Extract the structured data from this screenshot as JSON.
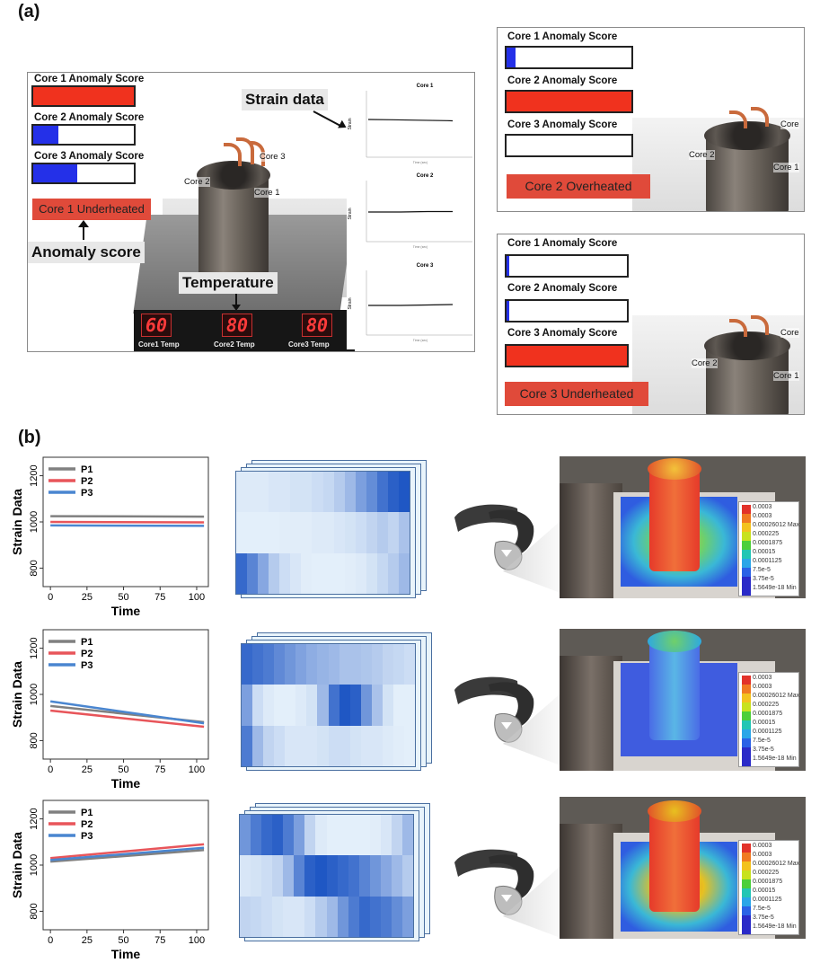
{
  "panel_a_label": "(a)",
  "panel_b_label": "(b)",
  "dashboard_main": {
    "scores": [
      {
        "title": "Core 1 Anomaly Score",
        "fill": 1.0,
        "color": "#f0321e"
      },
      {
        "title": "Core 2 Anomaly Score",
        "fill": 0.25,
        "color": "#2430e8"
      },
      {
        "title": "Core 3 Anomaly Score",
        "fill": 0.44,
        "color": "#2430e8"
      }
    ],
    "status": "Core  1  Underheated",
    "anomaly_callout": "Anomaly score",
    "strain_callout": "Strain data",
    "temperature_callout": "Temperature",
    "core_labels": [
      "Core 3",
      "Core 2",
      "Core 1"
    ],
    "temps": [
      {
        "value": "60",
        "label": "Core1 Temp"
      },
      {
        "value": "80",
        "label": "Core2 Temp"
      },
      {
        "value": "80",
        "label": "Core3 Temp"
      }
    ],
    "mini_charts": [
      {
        "title": "Core 1",
        "ylabel": "Strain",
        "xlabel": "Time (sec)"
      },
      {
        "title": "Core 2",
        "ylabel": "Strain",
        "xlabel": "Time (sec)"
      },
      {
        "title": "Core 3",
        "ylabel": "Strain",
        "xlabel": "Time (sec)"
      }
    ]
  },
  "dashboard_top_right": {
    "scores": [
      {
        "title": "Core 1 Anomaly Score",
        "fill": 0.07,
        "color": "#2430e8"
      },
      {
        "title": "Core 2 Anomaly Score",
        "fill": 1.0,
        "color": "#f0321e"
      },
      {
        "title": "Core 3 Anomaly Score",
        "fill": 0.0,
        "color": "#2430e8"
      }
    ],
    "status": "Core  2  Overheated",
    "core_labels": [
      "Core",
      "Core 2",
      "Core 1"
    ]
  },
  "dashboard_bottom_right": {
    "scores": [
      {
        "title": "Core 1 Anomaly Score",
        "fill": 0.02,
        "color": "#2430e8"
      },
      {
        "title": "Core 2 Anomaly Score",
        "fill": 0.02,
        "color": "#2430e8"
      },
      {
        "title": "Core 3 Anomaly Score",
        "fill": 1.0,
        "color": "#f0321e"
      }
    ],
    "status": "Core  3  Underheated",
    "core_labels": [
      "Core",
      "Core 2",
      "Core 1"
    ]
  },
  "chart_data": [
    {
      "type": "line",
      "ylabel": "Strain Data",
      "xlabel": "Time",
      "xticks": [
        0,
        25,
        50,
        75,
        100
      ],
      "yticks": [
        800,
        1000,
        1200
      ],
      "xlim": [
        -5,
        108
      ],
      "ylim": [
        720,
        1280
      ],
      "series": [
        {
          "name": "P1",
          "color": "#808080",
          "x": [
            0,
            105
          ],
          "y": [
            1025,
            1023
          ]
        },
        {
          "name": "P2",
          "color": "#e8555a",
          "x": [
            0,
            105
          ],
          "y": [
            1000,
            998
          ]
        },
        {
          "name": "P3",
          "color": "#4a86d0",
          "x": [
            0,
            105
          ],
          "y": [
            985,
            983
          ]
        }
      ]
    },
    {
      "type": "line",
      "ylabel": "Strain Data",
      "xlabel": "Time",
      "xticks": [
        0,
        25,
        50,
        75,
        100
      ],
      "yticks": [
        800,
        1000,
        1200
      ],
      "xlim": [
        -5,
        108
      ],
      "ylim": [
        720,
        1280
      ],
      "series": [
        {
          "name": "P1",
          "color": "#808080",
          "x": [
            0,
            105
          ],
          "y": [
            950,
            880
          ]
        },
        {
          "name": "P2",
          "color": "#e8555a",
          "x": [
            0,
            105
          ],
          "y": [
            930,
            860
          ]
        },
        {
          "name": "P3",
          "color": "#4a86d0",
          "x": [
            0,
            105
          ],
          "y": [
            970,
            875
          ]
        }
      ]
    },
    {
      "type": "line",
      "ylabel": "Strain Data",
      "xlabel": "Time",
      "xticks": [
        0,
        25,
        50,
        75,
        100
      ],
      "yticks": [
        800,
        1000,
        1200
      ],
      "xlim": [
        -5,
        108
      ],
      "ylim": [
        720,
        1280
      ],
      "series": [
        {
          "name": "P1",
          "color": "#808080",
          "x": [
            0,
            105
          ],
          "y": [
            1015,
            1065
          ]
        },
        {
          "name": "P2",
          "color": "#e8555a",
          "x": [
            0,
            105
          ],
          "y": [
            1030,
            1090
          ]
        },
        {
          "name": "P3",
          "color": "#4a86d0",
          "x": [
            0,
            105
          ],
          "y": [
            1022,
            1075
          ]
        }
      ]
    },
    {
      "type": "heatmap",
      "colormap": "blues",
      "rows": 3,
      "values": [
        [
          0.08,
          0.08,
          0.08,
          0.1,
          0.1,
          0.12,
          0.12,
          0.15,
          0.18,
          0.25,
          0.35,
          0.5,
          0.6,
          0.75,
          0.85,
          0.9
        ],
        [
          0.05,
          0.05,
          0.05,
          0.05,
          0.06,
          0.06,
          0.06,
          0.08,
          0.08,
          0.1,
          0.12,
          0.15,
          0.2,
          0.25,
          0.2,
          0.3
        ],
        [
          0.8,
          0.65,
          0.45,
          0.25,
          0.15,
          0.1,
          0.06,
          0.05,
          0.05,
          0.05,
          0.06,
          0.08,
          0.12,
          0.18,
          0.25,
          0.35
        ]
      ]
    },
    {
      "type": "heatmap",
      "colormap": "blues",
      "rows": 3,
      "values": [
        [
          0.8,
          0.75,
          0.7,
          0.62,
          0.55,
          0.48,
          0.42,
          0.38,
          0.35,
          0.3,
          0.3,
          0.28,
          0.25,
          0.2,
          0.18,
          0.15
        ],
        [
          0.5,
          0.15,
          0.08,
          0.05,
          0.05,
          0.08,
          0.12,
          0.35,
          0.75,
          0.9,
          0.85,
          0.55,
          0.3,
          0.12,
          0.05,
          0.05
        ],
        [
          0.7,
          0.35,
          0.2,
          0.15,
          0.1,
          0.1,
          0.1,
          0.12,
          0.15,
          0.15,
          0.12,
          0.1,
          0.1,
          0.08,
          0.06,
          0.05
        ]
      ]
    },
    {
      "type": "heatmap",
      "colormap": "blues",
      "rows": 3,
      "values": [
        [
          0.55,
          0.7,
          0.8,
          0.85,
          0.7,
          0.5,
          0.2,
          0.08,
          0.05,
          0.05,
          0.05,
          0.05,
          0.06,
          0.1,
          0.2,
          0.35
        ],
        [
          0.1,
          0.12,
          0.15,
          0.2,
          0.35,
          0.65,
          0.85,
          0.9,
          0.85,
          0.8,
          0.75,
          0.65,
          0.55,
          0.45,
          0.35,
          0.25
        ],
        [
          0.2,
          0.18,
          0.15,
          0.12,
          0.1,
          0.1,
          0.15,
          0.25,
          0.35,
          0.55,
          0.7,
          0.8,
          0.75,
          0.7,
          0.6,
          0.5
        ]
      ]
    }
  ],
  "fem_legend_main": [
    "0.0003",
    "0.0003",
    "0.00026012 Max",
    "0.000225",
    "0.0001875",
    "0.00015",
    "0.0001125",
    "7.5e-5",
    "3.75e-5",
    "1.5649e-18 Min"
  ],
  "fem_legend_mid": [
    "0.0003",
    "0.0003",
    "0.00026012 Max",
    "0.000225",
    "0.0001875",
    "0.00015",
    "0.0001125",
    "7.5e-5",
    "3.75e-5",
    "1.5649e-18 Min"
  ],
  "fem_legend_bottom": [
    "0.0003",
    "0.0003",
    "0.00026012 Max",
    "0.000225",
    "0.0001875",
    "0.00015",
    "0.0001125",
    "7.5e-5",
    "3.75e-5",
    "1.5649e-18 Min"
  ],
  "colors": {
    "alert_red": "#e04a3a",
    "score_red": "#f0321e",
    "score_blue": "#2430e8",
    "fem_colors": [
      "#e2322a",
      "#f07a22",
      "#f3c21e",
      "#c8e21e",
      "#4ccf3a",
      "#22c6b4",
      "#2aa6e8",
      "#2a62e6",
      "#2a2ac8"
    ]
  },
  "icons": {
    "headset": "ar-headset-icon"
  }
}
